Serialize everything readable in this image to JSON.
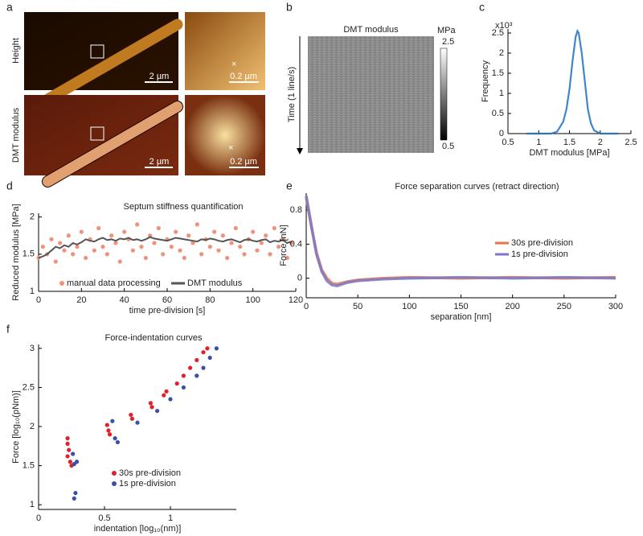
{
  "panel_labels": [
    "a",
    "b",
    "c",
    "d",
    "e",
    "f"
  ],
  "panel_a": {
    "row_labels": [
      "Height",
      "DMT modulus"
    ],
    "scale_bars": [
      "2 µm",
      "0.2 µm",
      "2 µm",
      "0.2 µm"
    ]
  },
  "chart_data": [
    {
      "type": "heatmap",
      "title": "DMT modulus",
      "ylabel": "Time (1 line/s)",
      "colorbar_label": "MPa",
      "clim": [
        0.5,
        2.5
      ],
      "colorbar_ticks": [
        0.5,
        2.5
      ]
    },
    {
      "type": "line",
      "ylabel": "Frequency",
      "xlabel": "DMT modulus [MPa]",
      "multiplier": "x10³",
      "x": [
        0.8,
        1.2,
        1.3,
        1.4,
        1.45,
        1.5,
        1.55,
        1.6,
        1.63,
        1.65,
        1.7,
        1.75,
        1.8,
        1.85,
        1.9,
        2.0,
        2.3
      ],
      "series": [
        {
          "color": "#1f6fc0",
          "values": [
            0,
            0,
            0.05,
            0.3,
            0.6,
            1.1,
            1.8,
            2.4,
            2.55,
            2.5,
            2.0,
            1.3,
            0.6,
            0.25,
            0.08,
            0,
            0
          ]
        }
      ],
      "xlim": [
        0.5,
        2.5
      ],
      "xticks": [
        0.5,
        1,
        1.5,
        2,
        2.5
      ],
      "ylim": [
        0,
        2.6
      ],
      "yticks": [
        0,
        0.5,
        1,
        1.5,
        2,
        2.5
      ]
    },
    {
      "type": "scatter",
      "title": "Septum stiffness quantification",
      "ylabel": "Reduced modulus [MPa]",
      "xlabel": "time pre-division [s]",
      "xlim": [
        0,
        120
      ],
      "xticks": [
        0,
        20,
        40,
        60,
        80,
        100,
        120
      ],
      "ylim": [
        1,
        2.05
      ],
      "yticks": [
        1,
        1.5,
        2
      ],
      "legend": "bottom",
      "series": [
        {
          "name": "manual data processing",
          "mode": "markers",
          "color": "#f0927a",
          "x": [
            0,
            2,
            4,
            6,
            8,
            10,
            12,
            14,
            16,
            18,
            20,
            22,
            24,
            26,
            28,
            30,
            32,
            34,
            36,
            38,
            40,
            42,
            44,
            46,
            48,
            50,
            52,
            54,
            56,
            58,
            60,
            62,
            64,
            66,
            68,
            70,
            72,
            74,
            76,
            78,
            80,
            82,
            84,
            86,
            88,
            90,
            92,
            94,
            96,
            98,
            100,
            102,
            104,
            106,
            108,
            110,
            112,
            114,
            116,
            118
          ],
          "values": [
            1.45,
            1.6,
            1.5,
            1.7,
            1.4,
            1.65,
            1.55,
            1.75,
            1.5,
            1.6,
            1.8,
            1.45,
            1.7,
            1.55,
            1.85,
            1.6,
            1.5,
            1.75,
            1.65,
            1.4,
            1.8,
            1.7,
            1.55,
            1.9,
            1.6,
            1.45,
            1.75,
            1.65,
            1.85,
            1.5,
            1.7,
            1.6,
            1.8,
            1.55,
            1.45,
            1.75,
            1.65,
            1.9,
            1.5,
            1.7,
            1.6,
            1.8,
            1.55,
            1.75,
            1.45,
            1.65,
            1.85,
            1.6,
            1.5,
            1.7,
            1.8,
            1.55,
            1.65,
            1.75,
            1.5,
            1.85,
            1.6,
            1.7,
            1.45,
            1.65
          ]
        },
        {
          "name": "DMT modulus",
          "mode": "line",
          "color": "#555555",
          "x": [
            0,
            2,
            4,
            6,
            8,
            10,
            12,
            14,
            16,
            18,
            20,
            22,
            24,
            26,
            28,
            30,
            32,
            34,
            36,
            38,
            40,
            42,
            44,
            46,
            48,
            50,
            52,
            54,
            56,
            58,
            60,
            62,
            64,
            66,
            68,
            70,
            72,
            74,
            76,
            78,
            80,
            82,
            84,
            86,
            88,
            90,
            92,
            94,
            96,
            98,
            100,
            102,
            104,
            106,
            108,
            110,
            112,
            114,
            116,
            118
          ],
          "values": [
            1.45,
            1.47,
            1.5,
            1.55,
            1.6,
            1.58,
            1.62,
            1.6,
            1.65,
            1.63,
            1.66,
            1.7,
            1.68,
            1.67,
            1.7,
            1.72,
            1.69,
            1.7,
            1.68,
            1.71,
            1.7,
            1.72,
            1.69,
            1.7,
            1.68,
            1.7,
            1.73,
            1.71,
            1.7,
            1.69,
            1.68,
            1.7,
            1.72,
            1.71,
            1.7,
            1.69,
            1.68,
            1.67,
            1.7,
            1.69,
            1.71,
            1.7,
            1.68,
            1.67,
            1.69,
            1.7,
            1.68,
            1.66,
            1.69,
            1.7,
            1.68,
            1.67,
            1.69,
            1.7,
            1.66,
            1.68,
            1.67,
            1.69,
            1.65,
            1.67
          ]
        }
      ]
    },
    {
      "type": "line",
      "title": "Force separation curves (retract direction)",
      "ylabel": "Force [nN]",
      "xlabel": "separation [nm]",
      "xlim": [
        0,
        300
      ],
      "xticks": [
        0,
        50,
        100,
        150,
        200,
        250,
        300
      ],
      "ylim": [
        -0.23,
        1.0
      ],
      "yticks": [
        0,
        0.4,
        0.8
      ],
      "legend": "right",
      "x": [
        0,
        5,
        10,
        15,
        20,
        25,
        30,
        40,
        50,
        75,
        100,
        150,
        200,
        250,
        300
      ],
      "series": [
        {
          "name": "30s pre-division",
          "color": "#e8744a",
          "values": [
            0.95,
            0.6,
            0.3,
            0.1,
            0.0,
            -0.06,
            -0.07,
            -0.04,
            -0.02,
            0,
            0.01,
            0,
            0.01,
            0,
            0.01
          ]
        },
        {
          "name": "1s pre-division",
          "color": "#7b78c8",
          "values": [
            0.97,
            0.62,
            0.28,
            0.08,
            -0.03,
            -0.08,
            -0.09,
            -0.05,
            -0.03,
            -0.01,
            0,
            0.01,
            0,
            0.01,
            0
          ]
        }
      ]
    },
    {
      "type": "scatter",
      "title": "Force-indentation curves",
      "ylabel": "Force [log₁₀(pNm)]",
      "xlabel": "indentation [log₁₀(nm)]",
      "xlim": [
        0,
        1.5
      ],
      "xticks": [
        0,
        0.5,
        1
      ],
      "ylim": [
        0.94,
        3.05
      ],
      "yticks": [
        1,
        1.5,
        2,
        2.5,
        3
      ],
      "legend": "bottom-right",
      "series": [
        {
          "name": "30s pre-division",
          "mode": "markers",
          "color": "#e0202a",
          "x": [
            0.22,
            0.22,
            0.23,
            0.22,
            0.24,
            0.25,
            0.52,
            0.53,
            0.54,
            0.7,
            0.71,
            0.85,
            0.86,
            0.95,
            0.97,
            1.05,
            1.1,
            1.15,
            1.2,
            1.25,
            1.28
          ],
          "values": [
            1.85,
            1.78,
            1.7,
            1.62,
            1.55,
            1.5,
            2.02,
            1.95,
            1.9,
            2.15,
            2.1,
            2.3,
            2.25,
            2.4,
            2.45,
            2.55,
            2.65,
            2.75,
            2.85,
            2.95,
            3.0
          ]
        },
        {
          "name": "1s pre-division",
          "mode": "markers",
          "color": "#3a4fa8",
          "x": [
            0.26,
            0.27,
            0.28,
            0.27,
            0.29,
            0.56,
            0.58,
            0.6,
            0.75,
            0.9,
            1.0,
            1.1,
            1.2,
            1.25,
            1.3,
            1.35
          ],
          "values": [
            1.65,
            1.52,
            1.15,
            1.08,
            1.55,
            2.07,
            1.85,
            1.8,
            2.05,
            2.2,
            2.35,
            2.5,
            2.65,
            2.75,
            2.88,
            3.0
          ]
        }
      ]
    }
  ]
}
